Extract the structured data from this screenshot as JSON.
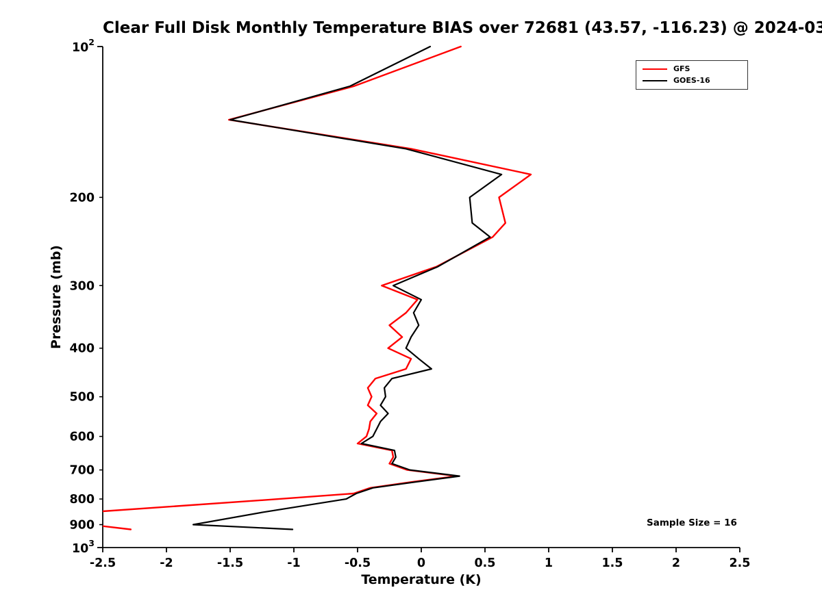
{
  "title": "Clear Full Disk Monthly Temperature BIAS over 72681 (43.57, -116.23) @ 2024-03",
  "x_axis": {
    "label": "Temperature (K)",
    "ticks": [
      -2.5,
      -2,
      -1.5,
      -1,
      -0.5,
      0,
      0.5,
      1,
      1.5,
      2,
      2.5
    ],
    "tick_labels": [
      "-2.5",
      "-2",
      "-1.5",
      "-1",
      "-0.5",
      "0",
      "0.5",
      "1",
      "1.5",
      "2",
      "2.5"
    ]
  },
  "y_axis": {
    "label": "Pressure (mb)",
    "scale": "log",
    "major_ticks": [
      {
        "value": 100,
        "base": "10",
        "exponent": "2"
      },
      {
        "value": 1000,
        "base": "10",
        "exponent": "3"
      }
    ],
    "minor_ticks": [
      200,
      300,
      400,
      500,
      600,
      700,
      800,
      900
    ]
  },
  "legend": {
    "entries": [
      {
        "label": "GFS",
        "color": "#ff0000"
      },
      {
        "label": "GOES-16",
        "color": "#000000"
      }
    ],
    "position": "top-right"
  },
  "annotations": {
    "sample_size": "Sample Size = 16"
  },
  "chart_data": {
    "type": "line",
    "title": "Clear Full Disk Monthly Temperature BIAS over 72681 (43.57, -116.23) @ 2024-03",
    "xlabel": "Temperature (K)",
    "ylabel": "Pressure (mb)",
    "xlim": [
      -2.5,
      2.5
    ],
    "ylim": [
      100,
      1000
    ],
    "y_scale": "log",
    "y_direction": "pressure-increases-downward",
    "grid": false,
    "legend_position": "top-right",
    "sample_size": 16,
    "levels_mb": [
      100,
      120,
      140,
      160,
      180,
      200,
      225,
      240,
      275,
      300,
      320,
      340,
      360,
      380,
      400,
      420,
      440,
      460,
      480,
      500,
      520,
      540,
      560,
      580,
      600,
      620,
      640,
      660,
      680,
      700,
      720,
      740,
      760,
      780,
      800,
      850,
      900,
      920
    ],
    "series": [
      {
        "name": "GFS",
        "color": "#ff0000",
        "bias_k": [
          0.31,
          -0.53,
          -1.51,
          -0.08,
          0.86,
          0.61,
          0.66,
          0.56,
          0.12,
          -0.31,
          -0.03,
          -0.12,
          -0.25,
          -0.15,
          -0.26,
          -0.08,
          -0.12,
          -0.36,
          -0.42,
          -0.39,
          -0.42,
          -0.35,
          -0.4,
          -0.41,
          -0.43,
          -0.5,
          -0.23,
          -0.22,
          -0.25,
          -0.11,
          0.28,
          -0.08,
          -0.4,
          -0.53,
          -1.12,
          -2.6,
          -2.6,
          -2.28
        ]
      },
      {
        "name": "GOES-16",
        "color": "#000000",
        "bias_k": [
          0.07,
          -0.56,
          -1.5,
          -0.12,
          0.63,
          0.38,
          0.4,
          0.54,
          0.13,
          -0.22,
          0.0,
          -0.06,
          -0.02,
          -0.08,
          -0.12,
          -0.02,
          0.08,
          -0.23,
          -0.29,
          -0.28,
          -0.32,
          -0.26,
          -0.32,
          -0.35,
          -0.38,
          -0.47,
          -0.21,
          -0.2,
          -0.23,
          -0.09,
          0.3,
          -0.05,
          -0.38,
          -0.51,
          -0.59,
          -1.24,
          -1.79,
          -1.01
        ]
      }
    ]
  }
}
